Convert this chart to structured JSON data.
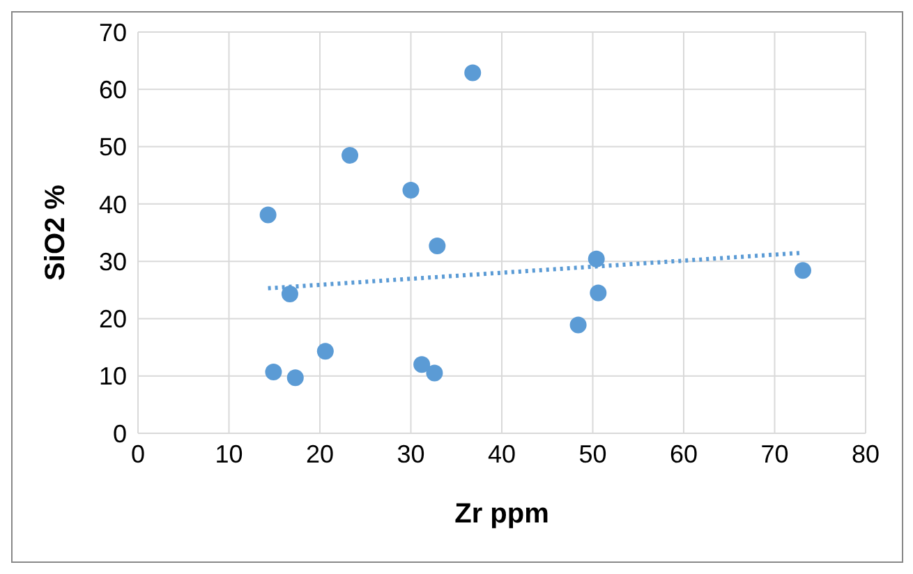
{
  "chart_data": {
    "type": "scatter",
    "xlabel": "Zr ppm",
    "ylabel": "SiO2 %",
    "xlim": [
      0,
      80
    ],
    "xticks": [
      0,
      10,
      20,
      30,
      40,
      50,
      60,
      70,
      80
    ],
    "ylim": [
      0,
      70
    ],
    "yticks": [
      0,
      10,
      20,
      30,
      40,
      50,
      60,
      70
    ],
    "grid": true,
    "legend": false,
    "marker": "circle",
    "series": [
      {
        "color": "#5b9bd5",
        "x": [
          14.3,
          23.3,
          30.0,
          36.8,
          32.9,
          16.7,
          14.9,
          17.3,
          20.6,
          31.2,
          32.6,
          50.4,
          50.6,
          48.4,
          73.1
        ],
        "values": [
          38.1,
          48.5,
          42.4,
          62.9,
          32.7,
          24.3,
          10.7,
          9.7,
          14.3,
          12.0,
          10.5,
          30.4,
          24.5,
          18.9,
          28.4
        ]
      },
      {
        "type": "line",
        "color": "#5b9bd5",
        "line_style": "dotted",
        "marker": "none",
        "x": [
          14.3,
          73.1
        ],
        "values": [
          25.3,
          31.5
        ]
      }
    ]
  }
}
